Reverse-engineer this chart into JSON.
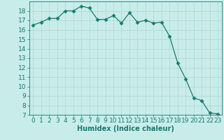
{
  "x": [
    0,
    1,
    2,
    3,
    4,
    5,
    6,
    7,
    8,
    9,
    10,
    11,
    12,
    13,
    14,
    15,
    16,
    17,
    18,
    19,
    20,
    21,
    22,
    23
  ],
  "y": [
    16.5,
    16.8,
    17.2,
    17.2,
    18.0,
    18.0,
    18.5,
    18.3,
    17.1,
    17.1,
    17.5,
    16.7,
    17.8,
    16.8,
    17.0,
    16.7,
    16.8,
    15.3,
    12.5,
    10.8,
    8.8,
    8.5,
    7.2,
    7.1
  ],
  "xlabel": "Humidex (Indice chaleur)",
  "ylim": [
    7,
    19
  ],
  "xlim": [
    -0.5,
    23.5
  ],
  "line_color": "#1a7a6e",
  "marker": "D",
  "marker_size": 2.5,
  "bg_color": "#c8ecea",
  "grid_color": "#b0d4d0",
  "yticks": [
    7,
    8,
    9,
    10,
    11,
    12,
    13,
    14,
    15,
    16,
    17,
    18
  ],
  "xticks": [
    0,
    1,
    2,
    3,
    4,
    5,
    6,
    7,
    8,
    9,
    10,
    11,
    12,
    13,
    14,
    15,
    16,
    17,
    18,
    19,
    20,
    21,
    22,
    23
  ],
  "label_fontsize": 7,
  "tick_fontsize": 6.5
}
